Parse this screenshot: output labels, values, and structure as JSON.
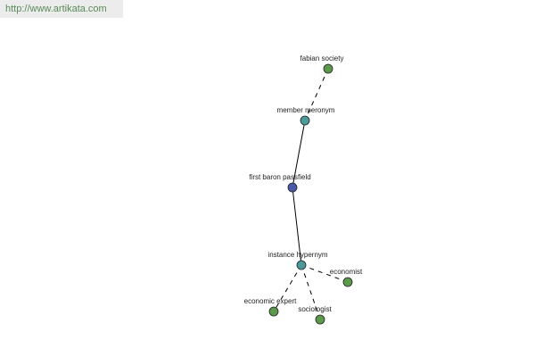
{
  "header": {
    "url": "http://www.artikata.com"
  },
  "nodes": [
    {
      "label": "fabian society"
    },
    {
      "label": "member meronym"
    },
    {
      "label": "first baron passfield"
    },
    {
      "label": "instance hypernym"
    },
    {
      "label": "economist"
    },
    {
      "label": "economic expert"
    },
    {
      "label": "sociologist"
    }
  ]
}
